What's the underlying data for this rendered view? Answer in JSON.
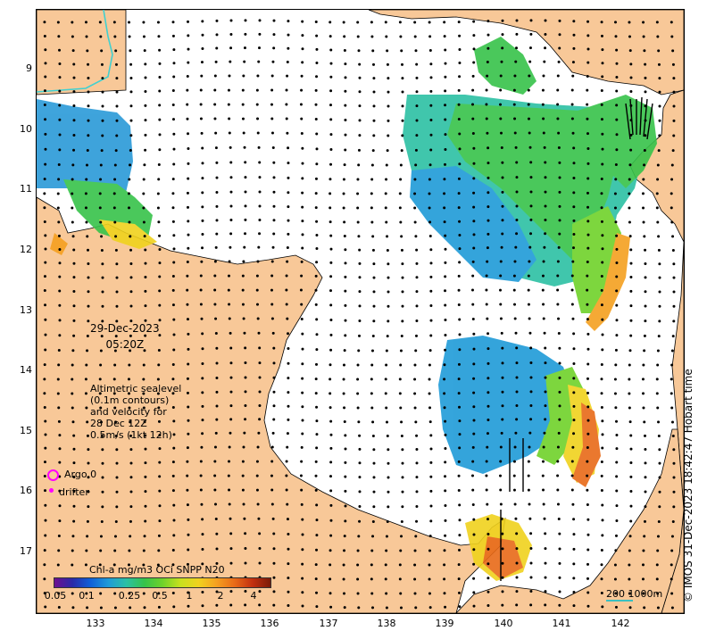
{
  "map": {
    "y_ticks": [
      "9",
      "10",
      "11",
      "12",
      "13",
      "14",
      "15",
      "16",
      "17"
    ],
    "x_ticks": [
      "133",
      "134",
      "135",
      "136",
      "137",
      "138",
      "139",
      "140",
      "141",
      "142"
    ],
    "timestamp_date": "29-Dec-2023",
    "timestamp_time": "05:20Z",
    "altimetry_note": [
      "Altimetric sealevel",
      "(0.1m contours)",
      "and velocity for",
      "28 Dec 12Z",
      "0.5m/s (1kt 12h)"
    ],
    "legend_argo": "Argo 0",
    "legend_drifter": "drifter",
    "colorbar_title": "Chl-a mg/m3 OCi SNPP N20",
    "colorbar_ticks": [
      "0.05",
      "0.1",
      "0.25",
      "0.5",
      "1",
      "2",
      "4"
    ],
    "scale_label": "200  1000m",
    "copyright": "© IMOS 31-Dec-2023 18:42:47 Hobart time",
    "colors": {
      "land": "#f8c898",
      "sea": "#ffffff",
      "coast": "#000000",
      "argo_marker": "#ff00ff",
      "river": "#40d0d0"
    }
  }
}
